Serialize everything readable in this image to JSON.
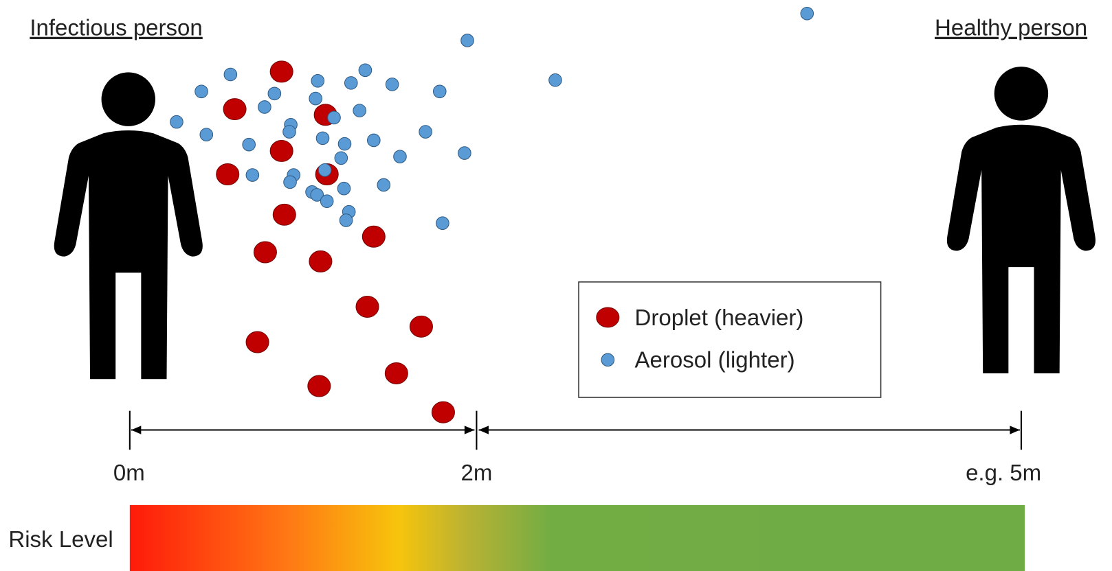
{
  "people": {
    "source": "Infectious person",
    "target": "Healthy person"
  },
  "legend": {
    "droplet": "Droplet (heavier)",
    "aerosol": "Aerosol (lighter)"
  },
  "distances": [
    "0m",
    "2m",
    "e.g. 5m"
  ],
  "risk_label": "Risk Level"
}
